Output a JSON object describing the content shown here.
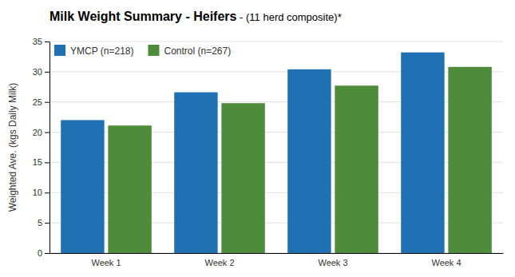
{
  "chart_data": {
    "type": "bar",
    "title": "Milk Weight Summary - Heifers",
    "subtitle": " - (11 herd composite)*",
    "categories": [
      "Week 1",
      "Week 2",
      "Week 3",
      "Week 4"
    ],
    "series": [
      {
        "name": "YMCP (n=218)",
        "color": "#2070b4",
        "values": [
          22.0,
          26.6,
          30.4,
          33.2
        ]
      },
      {
        "name": "Control (n=267)",
        "color": "#4e8c3c",
        "values": [
          21.1,
          24.8,
          27.7,
          30.8
        ]
      }
    ],
    "y_label": "Weighted Ave. (kgs Daily Milk)",
    "ylim": [
      0,
      35
    ],
    "yticks": [
      0,
      5,
      10,
      15,
      20,
      25,
      30,
      35
    ],
    "grid": true,
    "legend": "upper left"
  }
}
